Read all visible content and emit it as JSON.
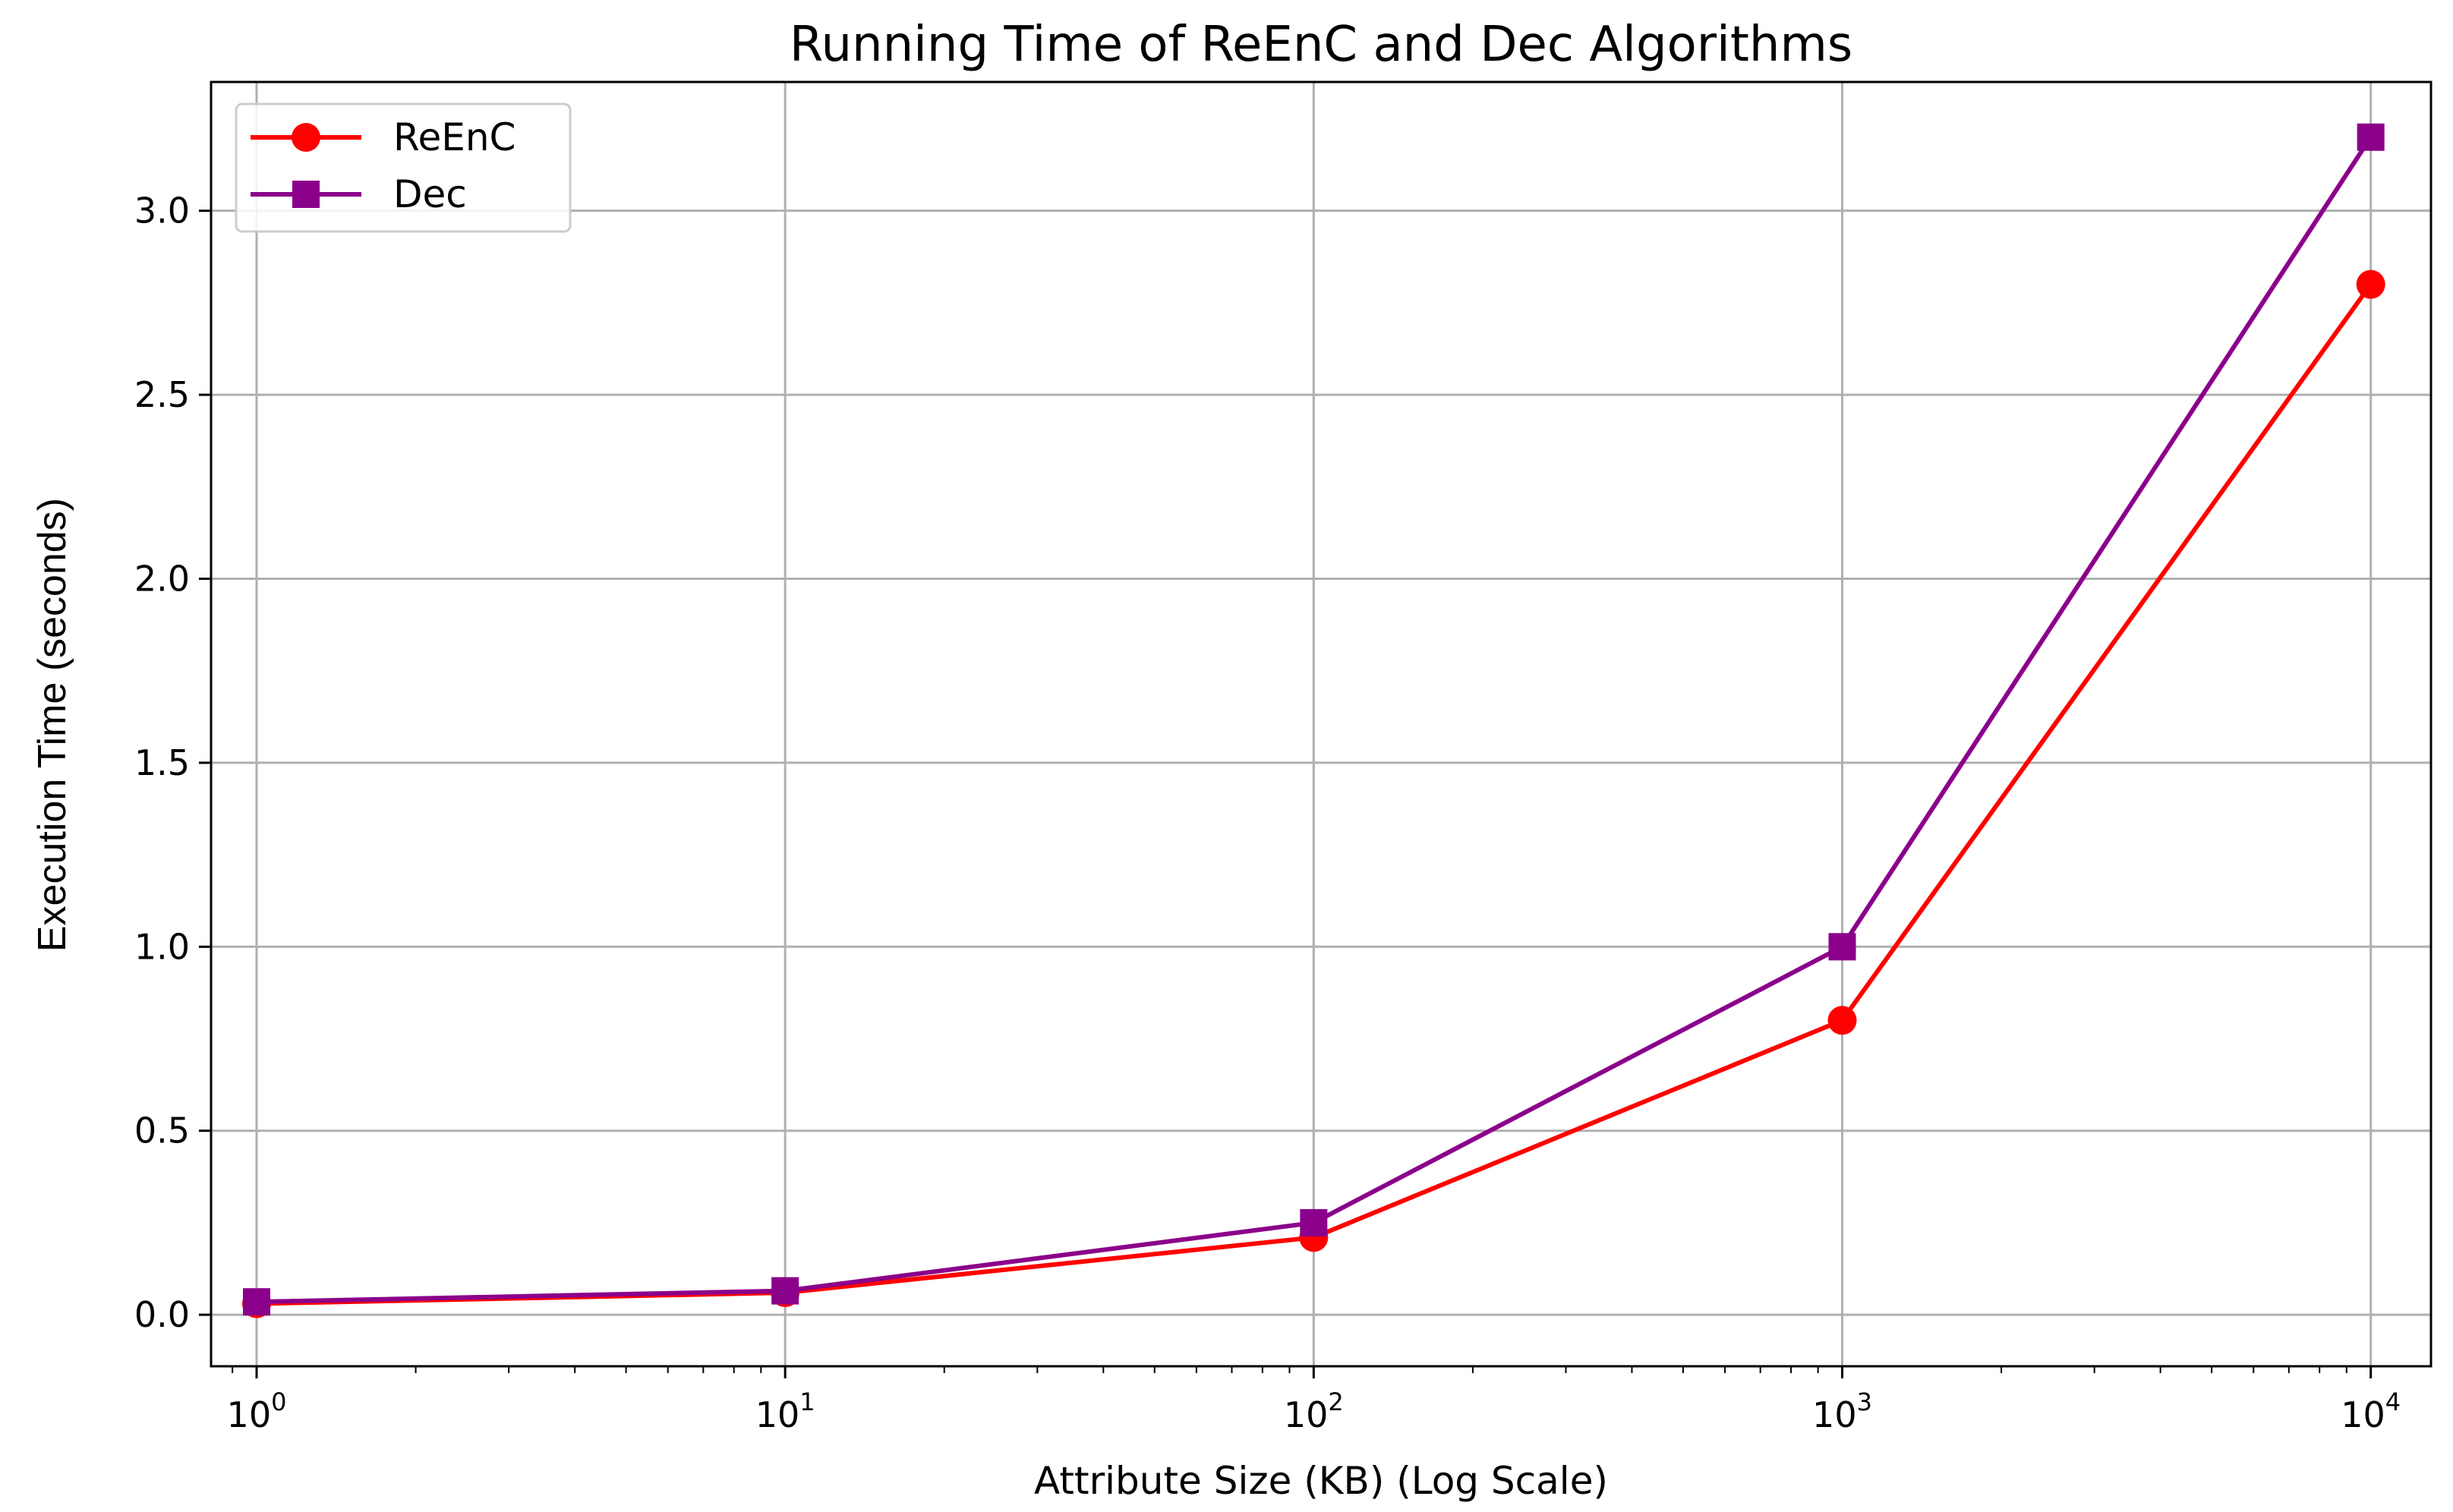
{
  "chart_data": {
    "type": "line",
    "title": "Running Time of ReEnC and Dec Algorithms",
    "xlabel": "Attribute Size (KB) (Log Scale)",
    "ylabel": "Execution Time (seconds)",
    "x_scale": "log",
    "x": [
      1,
      10,
      100,
      1000,
      10000
    ],
    "xlim": [
      0.82,
      13000
    ],
    "ylim": [
      -0.14,
      3.35
    ],
    "xticks": [
      {
        "value": 1,
        "base": "10",
        "exp": "0"
      },
      {
        "value": 10,
        "base": "10",
        "exp": "1"
      },
      {
        "value": 100,
        "base": "10",
        "exp": "2"
      },
      {
        "value": 1000,
        "base": "10",
        "exp": "3"
      },
      {
        "value": 10000,
        "base": "10",
        "exp": "4"
      }
    ],
    "yticks": [
      {
        "value": 0.0,
        "label": "0.0"
      },
      {
        "value": 0.5,
        "label": "0.5"
      },
      {
        "value": 1.0,
        "label": "1.0"
      },
      {
        "value": 1.5,
        "label": "1.5"
      },
      {
        "value": 2.0,
        "label": "2.0"
      },
      {
        "value": 2.5,
        "label": "2.5"
      },
      {
        "value": 3.0,
        "label": "3.0"
      }
    ],
    "grid": true,
    "legend_position": "top-left",
    "series": [
      {
        "name": "ReEnC",
        "color": "#ff0000",
        "marker": "circle",
        "values": [
          0.03,
          0.06,
          0.21,
          0.8,
          2.8
        ]
      },
      {
        "name": "Dec",
        "color": "#8b008b",
        "marker": "square",
        "values": [
          0.035,
          0.065,
          0.25,
          1.0,
          3.2
        ]
      }
    ]
  }
}
